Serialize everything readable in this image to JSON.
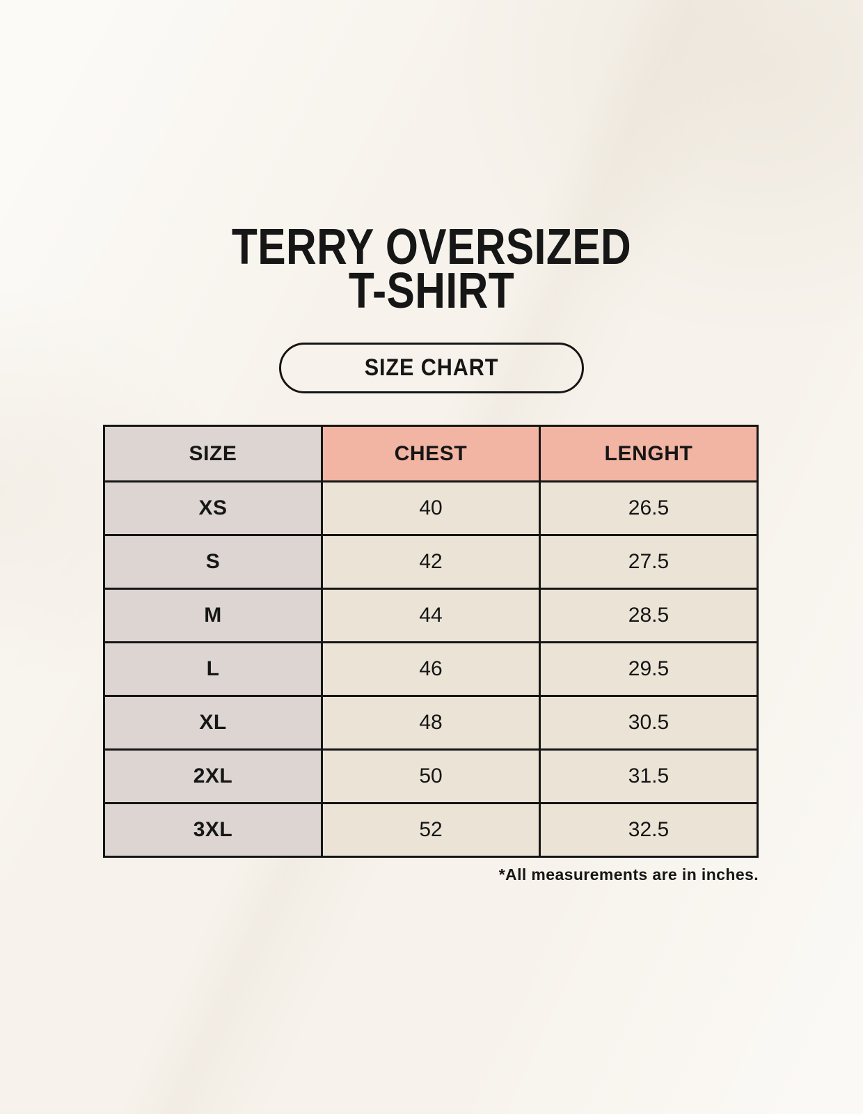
{
  "title": {
    "line1": "TERRY OVERSIZED",
    "line2": "T-SHIRT"
  },
  "badge": {
    "label": "SIZE CHART"
  },
  "table": {
    "headers": [
      "SIZE",
      "CHEST",
      "LENGHT"
    ],
    "rows": [
      [
        "XS",
        "40",
        "26.5"
      ],
      [
        "S",
        "42",
        "27.5"
      ],
      [
        "M",
        "44",
        "28.5"
      ],
      [
        "L",
        "46",
        "29.5"
      ],
      [
        "XL",
        "48",
        "30.5"
      ],
      [
        "2XL",
        "50",
        "31.5"
      ],
      [
        "3XL",
        "52",
        "32.5"
      ]
    ]
  },
  "note": "*All measurements are in inches.",
  "colors": {
    "page_bg": "#f7f3ec",
    "size_col_bg": "#ddd5d1",
    "accent_header_bg": "#f2b5a4",
    "value_cell_bg": "#eae3d6",
    "table_border": "#151515",
    "text": "#161616"
  },
  "chart_data": {
    "type": "table",
    "title": "TERRY OVERSIZED T-SHIRT",
    "subtitle": "SIZE CHART",
    "units": "inches",
    "columns": [
      "SIZE",
      "CHEST",
      "LENGHT"
    ],
    "rows": [
      {
        "size": "XS",
        "chest": 40,
        "length": 26.5
      },
      {
        "size": "S",
        "chest": 42,
        "length": 27.5
      },
      {
        "size": "M",
        "chest": 44,
        "length": 28.5
      },
      {
        "size": "L",
        "chest": 46,
        "length": 29.5
      },
      {
        "size": "XL",
        "chest": 48,
        "length": 30.5
      },
      {
        "size": "2XL",
        "chest": 50,
        "length": 31.5
      },
      {
        "size": "3XL",
        "chest": 52,
        "length": 32.5
      }
    ]
  }
}
